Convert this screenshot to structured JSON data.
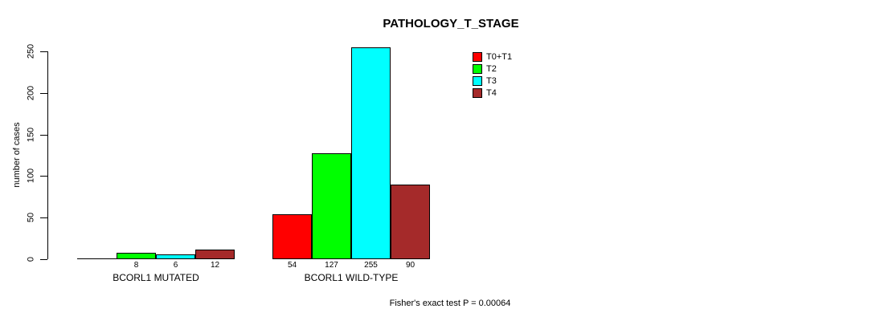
{
  "chart_data": {
    "type": "bar",
    "title": "PATHOLOGY_T_STAGE",
    "ylabel": "number of cases",
    "xlabel": "",
    "ylim": [
      0,
      250
    ],
    "yticks": [
      0,
      50,
      100,
      150,
      200,
      250
    ],
    "grid": false,
    "legend_position": "top-right",
    "categories": [
      "BCORL1 MUTATED",
      "BCORL1 WILD-TYPE"
    ],
    "series": [
      {
        "name": "T0+T1",
        "color": "#FF0000",
        "values": [
          0,
          54
        ],
        "bar_labels": [
          "",
          "54"
        ]
      },
      {
        "name": "T2",
        "color": "#00FF00",
        "values": [
          8,
          127
        ],
        "bar_labels": [
          "8",
          "127"
        ]
      },
      {
        "name": "T3",
        "color": "#00FFFF",
        "values": [
          6,
          255
        ],
        "bar_labels": [
          "6",
          "255"
        ]
      },
      {
        "name": "T4",
        "color": "#A52A2A",
        "values": [
          12,
          90
        ],
        "bar_labels": [
          "12",
          "90"
        ]
      }
    ],
    "footer": "Fisher's exact test P = 0.00064"
  }
}
